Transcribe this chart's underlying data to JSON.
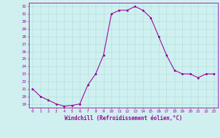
{
  "x": [
    0,
    1,
    2,
    3,
    4,
    5,
    6,
    7,
    8,
    9,
    10,
    11,
    12,
    13,
    14,
    15,
    16,
    17,
    18,
    19,
    20,
    21,
    22,
    23
  ],
  "y": [
    21.0,
    20.0,
    19.5,
    19.0,
    18.7,
    18.8,
    19.0,
    21.5,
    23.0,
    25.5,
    31.0,
    31.5,
    31.5,
    32.0,
    31.5,
    30.5,
    28.0,
    25.5,
    23.5,
    23.0,
    23.0,
    22.5,
    23.0,
    23.0
  ],
  "line_color": "#990099",
  "marker_color": "#990099",
  "bg_color": "#d0f0f0",
  "grid_color": "#aadddd",
  "axis_color": "#990099",
  "xlabel": "Windchill (Refroidissement éolien,°C)",
  "xlim": [
    -0.5,
    23.5
  ],
  "ylim": [
    18.5,
    32.5
  ],
  "yticks": [
    19,
    20,
    21,
    22,
    23,
    24,
    25,
    26,
    27,
    28,
    29,
    30,
    31,
    32
  ],
  "xticks": [
    0,
    1,
    2,
    3,
    4,
    5,
    6,
    7,
    8,
    9,
    10,
    11,
    12,
    13,
    14,
    15,
    16,
    17,
    18,
    19,
    20,
    21,
    22,
    23
  ]
}
